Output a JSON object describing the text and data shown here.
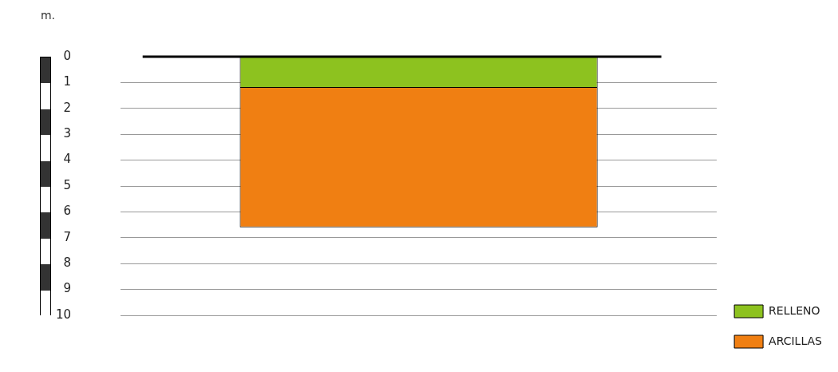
{
  "chart_data": {
    "type": "bar",
    "stacked": true,
    "ylabel": "m.",
    "categories": [
      null
    ],
    "series": [
      {
        "name": "RELLENO",
        "color": "#8dc21f",
        "values": [
          1.2
        ]
      },
      {
        "name": "ARCILLAS",
        "color": "#f07f12",
        "values": [
          5.4
        ]
      }
    ],
    "ylim": [
      10,
      0
    ],
    "yticks": [
      0,
      1,
      2,
      3,
      4,
      5,
      6,
      7,
      8,
      9,
      10
    ],
    "ref_lines": [
      {
        "axis": "y",
        "value": 0,
        "color": "#000000"
      }
    ],
    "grid": "y",
    "legend": "bottom right"
  }
}
